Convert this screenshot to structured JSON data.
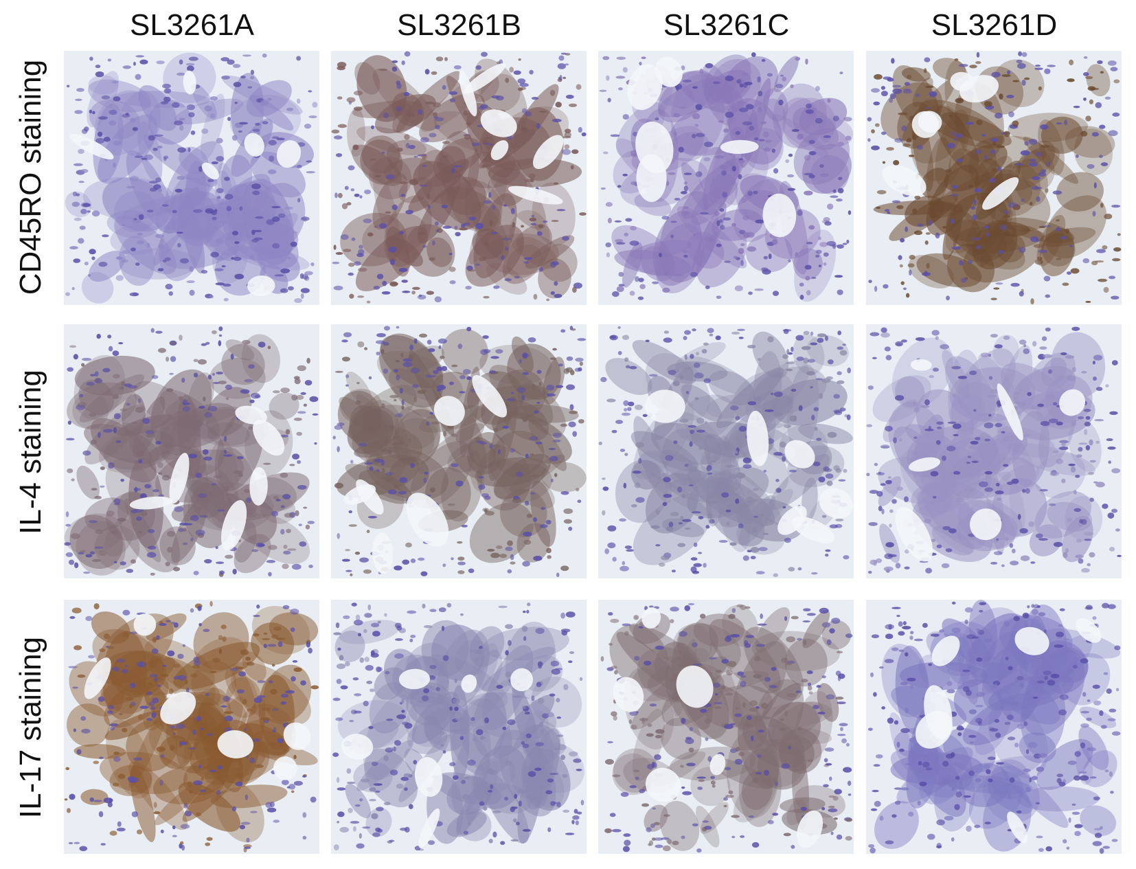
{
  "columns": [
    "SL3261A",
    "SL3261B",
    "SL3261C",
    "SL3261D"
  ],
  "rows": [
    "CD45RO staining",
    "IL-4 staining",
    "IL-17 staining"
  ],
  "panel_tints": [
    [
      "#8f86c4",
      "#7a5a58",
      "#8a78b8",
      "#6b4a30"
    ],
    [
      "#7e6a72",
      "#76625e",
      "#8a86a6",
      "#9a92c2"
    ],
    [
      "#8a5a30",
      "#8a88b0",
      "#7e6c70",
      "#7c78c0"
    ]
  ],
  "stain_colors": {
    "hematoxylin": "#5a4fa8",
    "dab": "#8b5a2b",
    "background": "#e8eef4"
  }
}
